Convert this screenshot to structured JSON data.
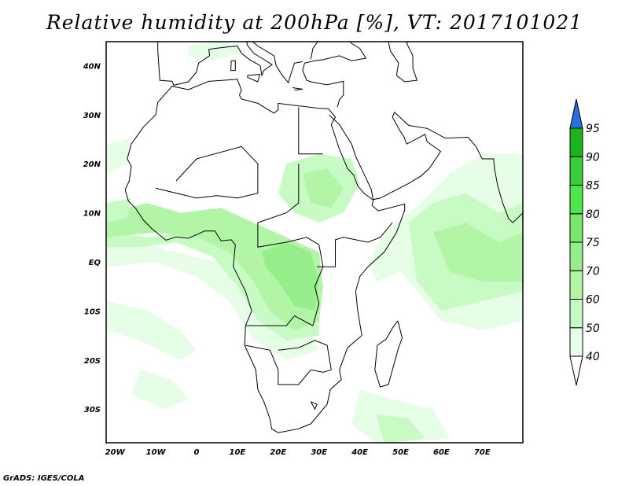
{
  "title": "Relative humidity at 200hPa [%], VT: 2017101021",
  "credit": "GrADS: IGES/COLA",
  "map": {
    "lon_range": [
      -22.2,
      80
    ],
    "lat_range": [
      -37,
      45
    ],
    "lon_labels": [
      {
        "lon": -20,
        "text": "20W"
      },
      {
        "lon": -10,
        "text": "10W"
      },
      {
        "lon": 0,
        "text": "0"
      },
      {
        "lon": 10,
        "text": "10E"
      },
      {
        "lon": 20,
        "text": "20E"
      },
      {
        "lon": 30,
        "text": "30E"
      },
      {
        "lon": 40,
        "text": "40E"
      },
      {
        "lon": 50,
        "text": "50E"
      },
      {
        "lon": 60,
        "text": "60E"
      },
      {
        "lon": 70,
        "text": "70E"
      }
    ],
    "lat_labels": [
      {
        "lat": 40,
        "text": "40N"
      },
      {
        "lat": 30,
        "text": "30N"
      },
      {
        "lat": 20,
        "text": "20N"
      },
      {
        "lat": 10,
        "text": "10N"
      },
      {
        "lat": 0,
        "text": "EQ"
      },
      {
        "lat": -10,
        "text": "10S"
      },
      {
        "lat": -20,
        "text": "20S"
      },
      {
        "lat": -30,
        "text": "30S"
      }
    ]
  },
  "colorbar": {
    "levels": [
      "40",
      "50",
      "60",
      "70",
      "75",
      "80",
      "85",
      "90",
      "95"
    ],
    "colors": [
      "#e6fde6",
      "#c8fac4",
      "#b2f5a6",
      "#96ee8a",
      "#78e670",
      "#4ee84e",
      "#36cf3a",
      "#1eb41e"
    ],
    "over_color": "#2a6ee0",
    "under_color": "#ffffff"
  }
}
